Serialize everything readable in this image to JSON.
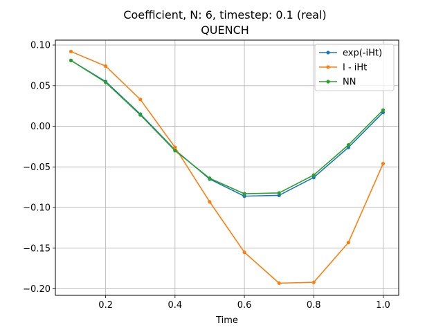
{
  "chart_data": {
    "type": "line",
    "title": "Coefficient, N: 6, timestep: 0.1 (real)",
    "subtitle": "QUENCH",
    "xlabel": "Time",
    "ylabel": "",
    "xlim": [
      0.055,
      1.045
    ],
    "ylim": [
      -0.208,
      0.106
    ],
    "xticks": [
      0.2,
      0.4,
      0.6,
      0.8,
      1.0
    ],
    "xtick_labels": [
      "0.2",
      "0.4",
      "0.6",
      "0.8",
      "1.0"
    ],
    "yticks": [
      0.1,
      0.05,
      0.0,
      -0.05,
      -0.1,
      -0.15,
      -0.2
    ],
    "ytick_labels": [
      "0.10",
      "0.05",
      "0.00",
      "−0.05",
      "−0.10",
      "−0.15",
      "−0.20"
    ],
    "grid": true,
    "legend_position": "top-right",
    "x": [
      0.1,
      0.2,
      0.3,
      0.4,
      0.5,
      0.6,
      0.7,
      0.8,
      0.9,
      1.0
    ],
    "series": [
      {
        "name": "exp(-iHt)",
        "color": "#1f77b4",
        "values": [
          0.081,
          0.055,
          0.015,
          -0.029,
          -0.065,
          -0.086,
          -0.085,
          -0.063,
          -0.026,
          0.017
        ]
      },
      {
        "name": "I - iHt",
        "color": "#ff7f0e",
        "values": [
          0.092,
          0.074,
          0.033,
          -0.026,
          -0.093,
          -0.155,
          -0.193,
          -0.192,
          -0.143,
          -0.046
        ]
      },
      {
        "name": "NN",
        "color": "#2ca02c",
        "values": [
          0.081,
          0.054,
          0.014,
          -0.03,
          -0.064,
          -0.083,
          -0.082,
          -0.06,
          -0.023,
          0.02
        ]
      }
    ]
  }
}
